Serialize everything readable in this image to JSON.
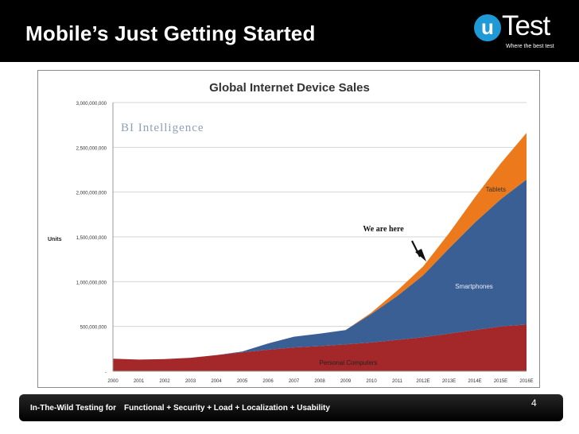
{
  "slide": {
    "title": "Mobile’s Just Getting Started",
    "page_number": "4"
  },
  "logo": {
    "mark": "u",
    "name": "Test",
    "tagline": "Where the best test"
  },
  "footer": {
    "left": "In-The-Wild Testing for",
    "right": "Functional + Security + Load + Localization + Usability"
  },
  "colors": {
    "personal_computers": "#a4282a",
    "smartphones": "#3a5f94",
    "tablets": "#ec7a1c"
  },
  "chart_data": {
    "type": "area",
    "stacked": true,
    "title": "Global Internet Device Sales",
    "watermark": "BI Intelligence",
    "ylabel": "Units",
    "xlabel": "",
    "ylim": [
      0,
      3000000000
    ],
    "ytick_values": [
      0,
      500000000,
      1000000000,
      1500000000,
      2000000000,
      2500000000,
      3000000000
    ],
    "ytick_labels": [
      "-",
      "500,000,000",
      "1,000,000,000",
      "1,500,000,000",
      "2,000,000,000",
      "2,500,000,000",
      "3,000,000,000"
    ],
    "categories": [
      "2000",
      "2001",
      "2002",
      "2003",
      "2004",
      "2005",
      "2006",
      "2007",
      "2008",
      "2009",
      "2010",
      "2011",
      "2012E",
      "2013E",
      "2014E",
      "2015E",
      "2016E"
    ],
    "series": [
      {
        "name": "Personal Computers",
        "values": [
          140000000,
          130000000,
          135000000,
          150000000,
          180000000,
          210000000,
          240000000,
          265000000,
          280000000,
          300000000,
          320000000,
          350000000,
          380000000,
          420000000,
          460000000,
          500000000,
          520000000
        ]
      },
      {
        "name": "Smartphones",
        "values": [
          0,
          0,
          0,
          0,
          0,
          10000000,
          70000000,
          120000000,
          140000000,
          160000000,
          320000000,
          490000000,
          690000000,
          950000000,
          1200000000,
          1420000000,
          1620000000
        ]
      },
      {
        "name": "Tablets",
        "values": [
          0,
          0,
          0,
          0,
          0,
          0,
          0,
          0,
          0,
          0,
          15000000,
          60000000,
          100000000,
          170000000,
          280000000,
          400000000,
          520000000
        ]
      }
    ],
    "annotations": [
      "Tablets",
      "Smartphones",
      "Personal Computers",
      "We are here"
    ]
  }
}
